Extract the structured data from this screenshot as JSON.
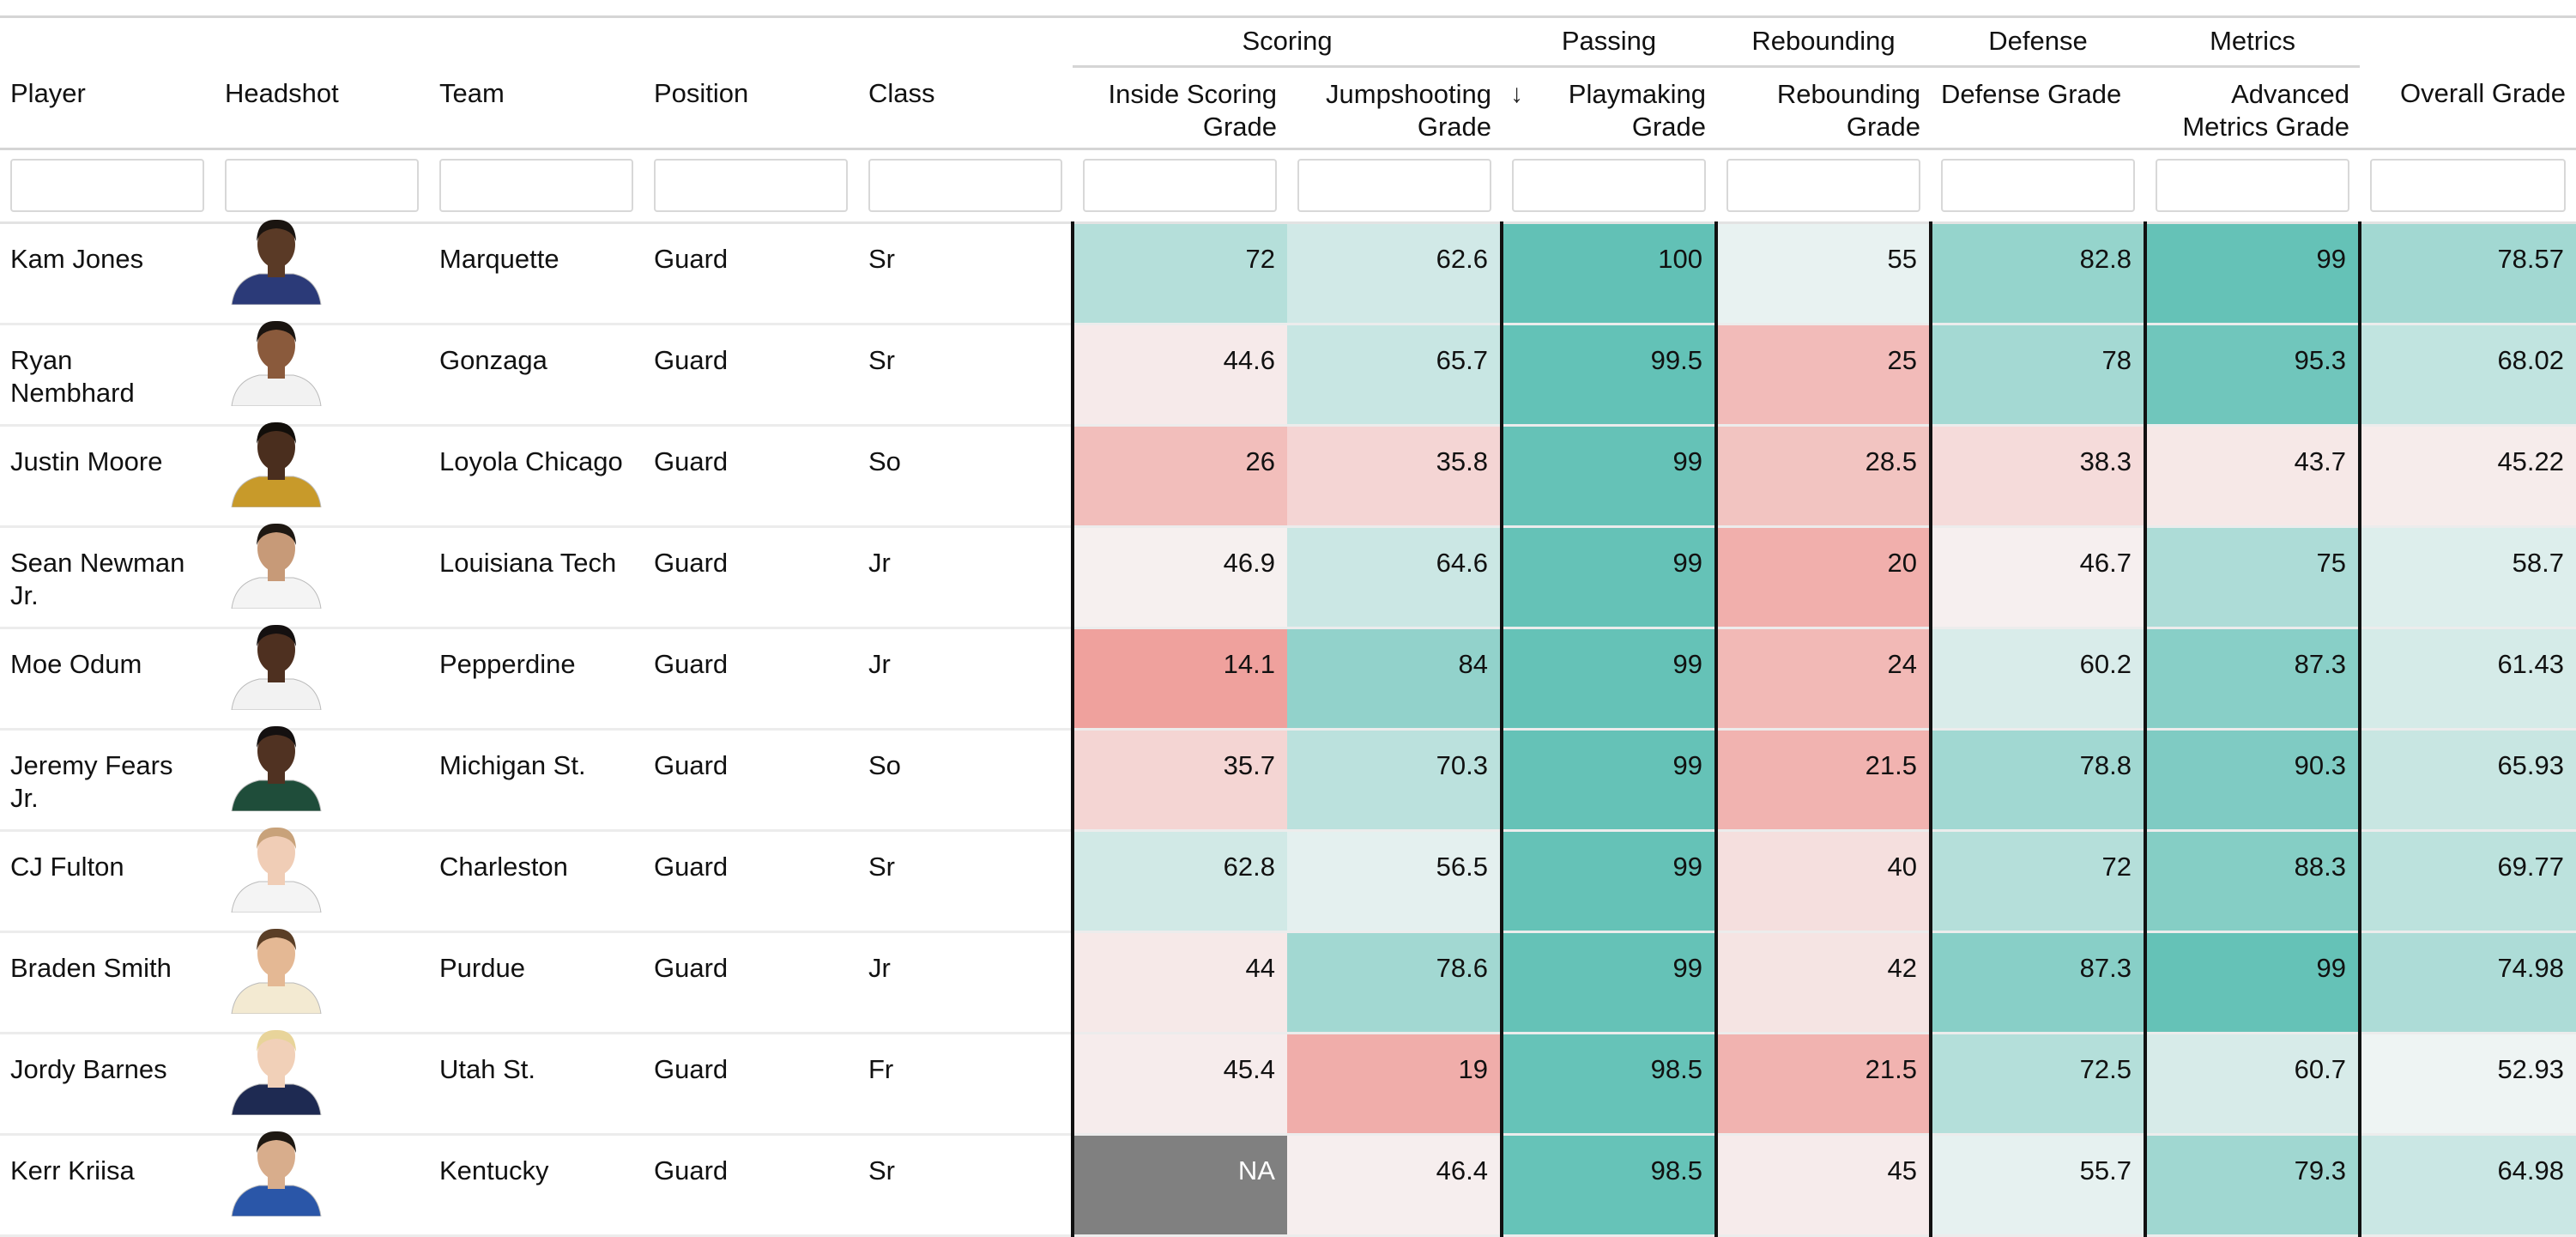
{
  "groups": {
    "scoring": "Scoring",
    "passing": "Passing",
    "rebounding": "Rebounding",
    "defense": "Defense",
    "metrics": "Metrics"
  },
  "columns": {
    "player": "Player",
    "headshot": "Headshot",
    "team": "Team",
    "position": "Position",
    "class": "Class",
    "inside_l1": "Inside Scoring",
    "inside_l2": "Grade",
    "jump_l1": "Jumpshooting",
    "jump_l2": "Grade",
    "play_l1": "Playmaking",
    "play_l2": "Grade",
    "reb_l1": "Rebounding",
    "reb_l2": "Grade",
    "defense": "Defense Grade",
    "adv_l1": "Advanced",
    "adv_l2": "Metrics Grade",
    "overall": "Overall Grade",
    "sort_icon": "↓"
  },
  "colors": {
    "high": "#62c1b6",
    "mid": "#f7f7f7",
    "low": "#ef9c98",
    "na": "#808080"
  },
  "rows": [
    {
      "player_l1": "Kam Jones",
      "player_l2": "",
      "team": "Marquette",
      "position": "Guard",
      "class": "Sr",
      "inside": "72",
      "jump": "62.6",
      "play": "100",
      "reb": "55",
      "def": "82.8",
      "adv": "99",
      "overall": "78.57",
      "skin": "#5a3a26",
      "jersey": "#2b3a78",
      "hair": "#1a1410"
    },
    {
      "player_l1": "Ryan",
      "player_l2": "Nembhard",
      "team": "Gonzaga",
      "position": "Guard",
      "class": "Sr",
      "inside": "44.6",
      "jump": "65.7",
      "play": "99.5",
      "reb": "25",
      "def": "78",
      "adv": "95.3",
      "overall": "68.02",
      "skin": "#8a5a3c",
      "jersey": "#f2f2f2",
      "hair": "#1a1410"
    },
    {
      "player_l1": "Justin Moore",
      "player_l2": "",
      "team": "Loyola Chicago",
      "position": "Guard",
      "class": "So",
      "inside": "26",
      "jump": "35.8",
      "play": "99",
      "reb": "28.5",
      "def": "38.3",
      "adv": "43.7",
      "overall": "45.22",
      "skin": "#4a2e1e",
      "jersey": "#c89a2a",
      "hair": "#120e0a"
    },
    {
      "player_l1": "Sean Newman",
      "player_l2": "Jr.",
      "team": "Louisiana Tech",
      "position": "Guard",
      "class": "Jr",
      "inside": "46.9",
      "jump": "64.6",
      "play": "99",
      "reb": "20",
      "def": "46.7",
      "adv": "75",
      "overall": "58.7",
      "skin": "#c79a78",
      "jersey": "#f4f4f4",
      "hair": "#1e1812"
    },
    {
      "player_l1": "Moe Odum",
      "player_l2": "",
      "team": "Pepperdine",
      "position": "Guard",
      "class": "Jr",
      "inside": "14.1",
      "jump": "84",
      "play": "99",
      "reb": "24",
      "def": "60.2",
      "adv": "87.3",
      "overall": "61.43",
      "skin": "#4e3020",
      "jersey": "#f2f2f2",
      "hair": "#141010"
    },
    {
      "player_l1": "Jeremy Fears",
      "player_l2": "Jr.",
      "team": "Michigan St.",
      "position": "Guard",
      "class": "So",
      "inside": "35.7",
      "jump": "70.3",
      "play": "99",
      "reb": "21.5",
      "def": "78.8",
      "adv": "90.3",
      "overall": "65.93",
      "skin": "#503222",
      "jersey": "#1f4d3a",
      "hair": "#141010"
    },
    {
      "player_l1": "CJ Fulton",
      "player_l2": "",
      "team": "Charleston",
      "position": "Guard",
      "class": "Sr",
      "inside": "62.8",
      "jump": "56.5",
      "play": "99",
      "reb": "40",
      "def": "72",
      "adv": "88.3",
      "overall": "69.77",
      "skin": "#f0cdb6",
      "jersey": "#f4f4f4",
      "hair": "#c8a27a"
    },
    {
      "player_l1": "Braden Smith",
      "player_l2": "",
      "team": "Purdue",
      "position": "Guard",
      "class": "Jr",
      "inside": "44",
      "jump": "78.6",
      "play": "99",
      "reb": "42",
      "def": "87.3",
      "adv": "99",
      "overall": "74.98",
      "skin": "#e4b894",
      "jersey": "#f3ead2",
      "hair": "#5a3e26"
    },
    {
      "player_l1": "Jordy Barnes",
      "player_l2": "",
      "team": "Utah St.",
      "position": "Guard",
      "class": "Fr",
      "inside": "45.4",
      "jump": "19",
      "play": "98.5",
      "reb": "21.5",
      "def": "72.5",
      "adv": "60.7",
      "overall": "52.93",
      "skin": "#f1d0b8",
      "jersey": "#1e2a52",
      "hair": "#e8d49a"
    },
    {
      "player_l1": "Kerr Kriisa",
      "player_l2": "",
      "team": "Kentucky",
      "position": "Guard",
      "class": "Sr",
      "inside": "NA",
      "jump": "46.4",
      "play": "98.5",
      "reb": "45",
      "def": "55.7",
      "adv": "79.3",
      "overall": "64.98",
      "skin": "#d8ad8c",
      "jersey": "#2a56a8",
      "hair": "#1e1812"
    }
  ]
}
